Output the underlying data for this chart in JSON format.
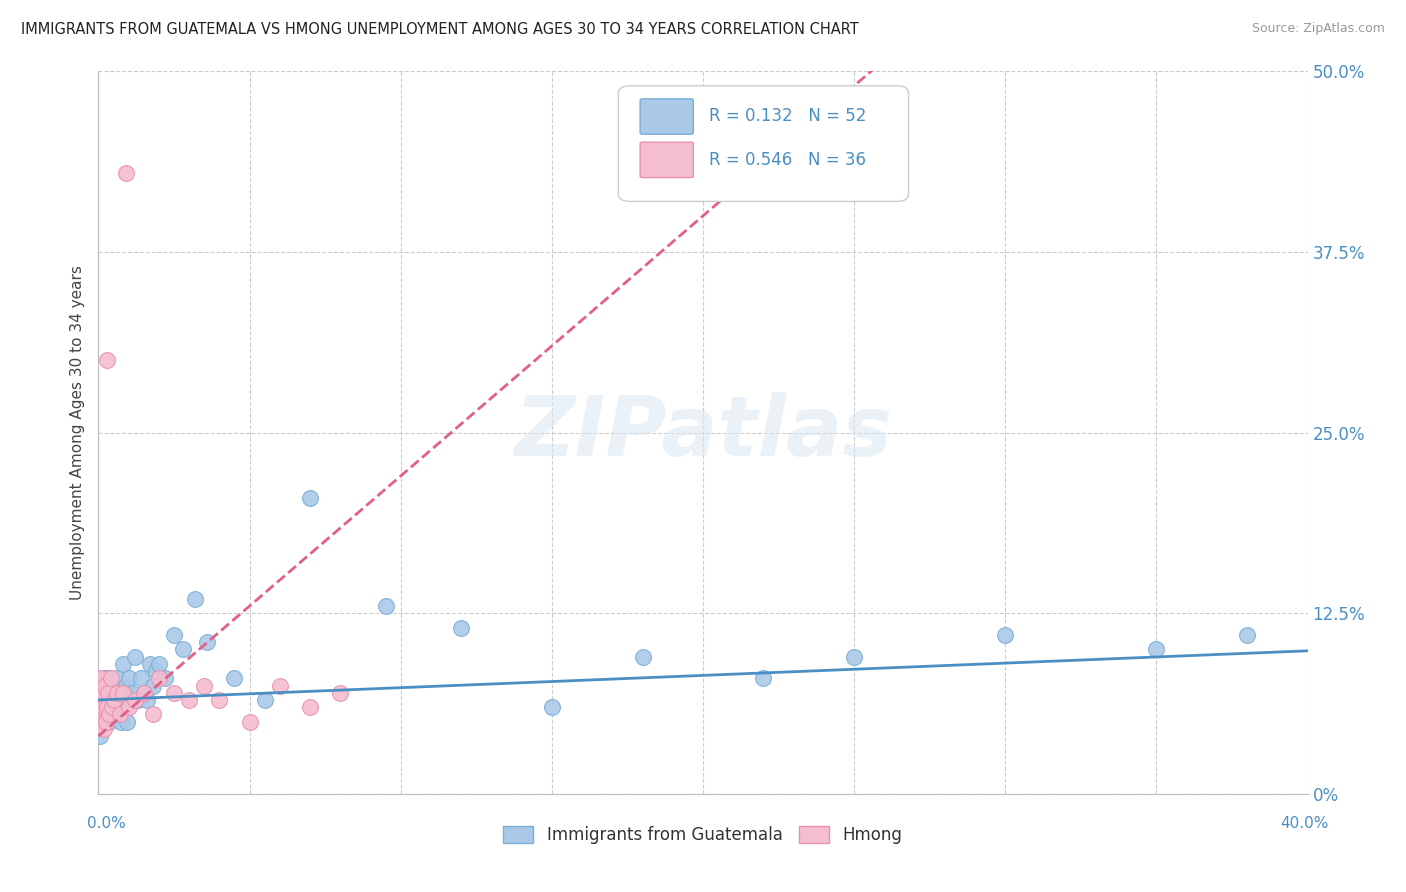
{
  "title": "IMMIGRANTS FROM GUATEMALA VS HMONG UNEMPLOYMENT AMONG AGES 30 TO 34 YEARS CORRELATION CHART",
  "source": "Source: ZipAtlas.com",
  "ylabel": "Unemployment Among Ages 30 to 34 years",
  "xlim": [
    0.0,
    40.0
  ],
  "ylim": [
    0.0,
    50.0
  ],
  "yticks": [
    0.0,
    12.5,
    25.0,
    37.5,
    50.0
  ],
  "series1_label": "Immigrants from Guatemala",
  "series1_color": "#aac9e8",
  "series1_edge_color": "#7aafd4",
  "series1_R": "0.132",
  "series1_N": "52",
  "series2_label": "Hmong",
  "series2_color": "#f5bdd0",
  "series2_edge_color": "#e890ae",
  "series2_R": "0.546",
  "series2_N": "36",
  "line1_color": "#4a8fc4",
  "line2_color": "#e0608a",
  "background_color": "#ffffff",
  "grid_color": "#cccccc",
  "watermark": "ZIPatlas",
  "guatemala_x": [
    0.05,
    0.08,
    0.1,
    0.12,
    0.15,
    0.18,
    0.2,
    0.22,
    0.25,
    0.28,
    0.3,
    0.35,
    0.4,
    0.45,
    0.5,
    0.55,
    0.6,
    0.65,
    0.7,
    0.75,
    0.8,
    0.85,
    0.9,
    0.95,
    1.0,
    1.1,
    1.2,
    1.3,
    1.4,
    1.5,
    1.6,
    1.7,
    1.8,
    1.9,
    2.0,
    2.2,
    2.5,
    2.8,
    3.2,
    3.6,
    4.5,
    5.5,
    7.0,
    9.5,
    12.0,
    15.0,
    18.0,
    22.0,
    25.0,
    30.0,
    35.0,
    38.0
  ],
  "guatemala_y": [
    4.0,
    6.0,
    5.0,
    7.0,
    5.5,
    8.0,
    6.0,
    5.0,
    7.0,
    6.5,
    8.0,
    5.0,
    6.0,
    7.0,
    5.5,
    6.0,
    8.0,
    6.5,
    7.0,
    5.0,
    9.0,
    6.0,
    7.5,
    5.0,
    8.0,
    7.0,
    9.5,
    6.5,
    8.0,
    7.0,
    6.5,
    9.0,
    7.5,
    8.5,
    9.0,
    8.0,
    11.0,
    10.0,
    13.5,
    10.5,
    8.0,
    6.5,
    20.5,
    13.0,
    11.5,
    6.0,
    9.5,
    8.0,
    9.5,
    11.0,
    10.0,
    11.0
  ],
  "hmong_x": [
    0.02,
    0.04,
    0.06,
    0.08,
    0.1,
    0.12,
    0.14,
    0.16,
    0.18,
    0.2,
    0.22,
    0.25,
    0.28,
    0.3,
    0.32,
    0.35,
    0.4,
    0.45,
    0.5,
    0.6,
    0.7,
    0.8,
    0.9,
    1.0,
    1.2,
    1.5,
    1.8,
    2.0,
    2.5,
    3.0,
    3.5,
    4.0,
    5.0,
    6.0,
    7.0,
    8.0
  ],
  "hmong_y": [
    5.0,
    7.0,
    6.0,
    5.5,
    8.0,
    6.5,
    7.0,
    5.0,
    4.5,
    6.0,
    7.5,
    5.0,
    30.0,
    6.0,
    7.0,
    5.5,
    8.0,
    6.0,
    6.5,
    7.0,
    5.5,
    7.0,
    43.0,
    6.0,
    6.5,
    7.0,
    5.5,
    8.0,
    7.0,
    6.5,
    7.5,
    6.5,
    5.0,
    7.5,
    6.0,
    7.0
  ],
  "line1_slope": 0.085,
  "line1_intercept": 6.5,
  "line2_slope": 1.8,
  "line2_intercept": 4.0
}
